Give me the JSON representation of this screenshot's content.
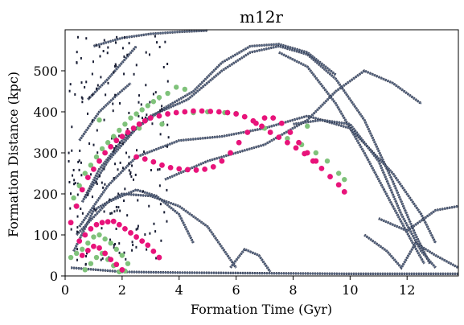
{
  "chart_data": {
    "type": "scatter",
    "title": "m12r",
    "xlabel": "Formation Time (Gyr)",
    "ylabel": "Formation Distance (kpc)",
    "xlim": [
      0,
      13.8
    ],
    "ylim": [
      0,
      600
    ],
    "xticks": [
      "0",
      "2",
      "4",
      "6",
      "8",
      "10",
      "12"
    ],
    "yticks": [
      "0",
      "100",
      "200",
      "300",
      "400",
      "500"
    ],
    "colors": {
      "background_density": "#5a6a85",
      "background_dark": "#1a1f35",
      "green": "#7fc27a",
      "pink": "#e8137a"
    },
    "density_tracks": [
      {
        "name": "",
        "points": [
          [
            0.6,
            180
          ],
          [
            1.2,
            260
          ],
          [
            2,
            330
          ],
          [
            3,
            390
          ],
          [
            4.3,
            430
          ],
          [
            5.5,
            500
          ],
          [
            6.5,
            545
          ],
          [
            7.5,
            560
          ],
          [
            8.5,
            540
          ],
          [
            9.5,
            480
          ],
          [
            10.5,
            380
          ],
          [
            11.5,
            230
          ],
          [
            12.3,
            100
          ],
          [
            12.8,
            30
          ]
        ]
      },
      {
        "name": "",
        "points": [
          [
            0.7,
            190
          ],
          [
            1.5,
            280
          ],
          [
            2.5,
            360
          ],
          [
            3.5,
            410
          ],
          [
            4.5,
            450
          ],
          [
            5.5,
            520
          ],
          [
            6.5,
            560
          ],
          [
            7.5,
            565
          ],
          [
            8.5,
            545
          ],
          [
            9.5,
            490
          ]
        ]
      },
      {
        "name": "",
        "points": [
          [
            7.5,
            545
          ],
          [
            8.5,
            510
          ],
          [
            9.5,
            420
          ],
          [
            10.5,
            300
          ],
          [
            11.5,
            170
          ],
          [
            12.2,
            80
          ],
          [
            12.6,
            30
          ]
        ]
      },
      {
        "name": "",
        "points": [
          [
            0.5,
            120
          ],
          [
            1.5,
            220
          ],
          [
            2.5,
            290
          ],
          [
            4,
            330
          ],
          [
            5.5,
            340
          ],
          [
            7,
            360
          ],
          [
            8.5,
            390
          ],
          [
            10,
            360
          ],
          [
            11.5,
            250
          ],
          [
            12.5,
            150
          ],
          [
            13,
            80
          ]
        ]
      },
      {
        "name": "",
        "points": [
          [
            0.3,
            60
          ],
          [
            1,
            160
          ],
          [
            2,
            200
          ],
          [
            3,
            195
          ],
          [
            4,
            170
          ],
          [
            5,
            120
          ],
          [
            5.8,
            40
          ],
          [
            6,
            20
          ]
        ]
      },
      {
        "name": "",
        "points": [
          [
            0.4,
            100
          ],
          [
            1.5,
            180
          ],
          [
            2.5,
            210
          ],
          [
            3.2,
            195
          ],
          [
            4,
            150
          ],
          [
            4.5,
            80
          ]
        ]
      },
      {
        "name": "",
        "points": [
          [
            5.8,
            20
          ],
          [
            6.3,
            65
          ],
          [
            6.8,
            50
          ],
          [
            7.2,
            10
          ]
        ]
      },
      {
        "name": "",
        "points": [
          [
            3.5,
            235
          ],
          [
            5,
            280
          ],
          [
            7,
            320
          ],
          [
            8.5,
            380
          ],
          [
            9.5,
            450
          ],
          [
            10.5,
            500
          ],
          [
            11.5,
            470
          ],
          [
            12.5,
            420
          ]
        ]
      },
      {
        "name": "",
        "points": [
          [
            8,
            370
          ],
          [
            9,
            380
          ],
          [
            10,
            370
          ],
          [
            11,
            280
          ],
          [
            11.8,
            150
          ],
          [
            12.5,
            60
          ],
          [
            13,
            20
          ]
        ]
      },
      {
        "name": "",
        "points": [
          [
            11,
            140
          ],
          [
            12,
            110
          ],
          [
            13,
            160
          ],
          [
            13.8,
            170
          ]
        ]
      },
      {
        "name": "",
        "points": [
          [
            10.5,
            100
          ],
          [
            11.3,
            60
          ],
          [
            11.8,
            20
          ],
          [
            12.3,
            80
          ],
          [
            13,
            50
          ],
          [
            13.8,
            20
          ]
        ]
      },
      {
        "name": "",
        "points": [
          [
            0.2,
            20
          ],
          [
            2,
            10
          ],
          [
            4,
            8
          ],
          [
            6,
            7
          ],
          [
            8,
            6
          ],
          [
            10,
            5
          ],
          [
            12,
            5
          ],
          [
            13.8,
            5
          ]
        ]
      },
      {
        "name": "",
        "points": [
          [
            1,
            560
          ],
          [
            2,
            580
          ],
          [
            3,
            590
          ],
          [
            4,
            595
          ],
          [
            5,
            598
          ]
        ]
      },
      {
        "name": "",
        "points": [
          [
            0.8,
            430
          ],
          [
            1.5,
            480
          ],
          [
            2,
            520
          ],
          [
            2.5,
            560
          ]
        ]
      },
      {
        "name": "",
        "points": [
          [
            0.5,
            330
          ],
          [
            1.2,
            400
          ],
          [
            1.8,
            440
          ],
          [
            2.3,
            470
          ]
        ]
      }
    ],
    "green_points": [
      {
        "x": 0.3,
        "y": 190
      },
      {
        "x": 0.5,
        "y": 220
      },
      {
        "x": 0.7,
        "y": 250
      },
      {
        "x": 0.9,
        "y": 270
      },
      {
        "x": 1.1,
        "y": 290
      },
      {
        "x": 1.3,
        "y": 310
      },
      {
        "x": 1.5,
        "y": 325
      },
      {
        "x": 1.7,
        "y": 340
      },
      {
        "x": 1.9,
        "y": 355
      },
      {
        "x": 2.1,
        "y": 370
      },
      {
        "x": 2.3,
        "y": 385
      },
      {
        "x": 2.5,
        "y": 395
      },
      {
        "x": 2.7,
        "y": 405
      },
      {
        "x": 2.9,
        "y": 415
      },
      {
        "x": 3.1,
        "y": 425
      },
      {
        "x": 3.3,
        "y": 435
      },
      {
        "x": 3.6,
        "y": 445
      },
      {
        "x": 3.9,
        "y": 460
      },
      {
        "x": 4.2,
        "y": 455
      },
      {
        "x": 1.2,
        "y": 380
      },
      {
        "x": 2.6,
        "y": 360
      },
      {
        "x": 3.4,
        "y": 370
      },
      {
        "x": 4.5,
        "y": 398
      },
      {
        "x": 5.0,
        "y": 400
      },
      {
        "x": 5.6,
        "y": 398
      },
      {
        "x": 6.0,
        "y": 396
      },
      {
        "x": 7.8,
        "y": 335
      },
      {
        "x": 8.3,
        "y": 320
      },
      {
        "x": 8.8,
        "y": 300
      },
      {
        "x": 9.2,
        "y": 280
      },
      {
        "x": 9.6,
        "y": 250
      },
      {
        "x": 9.8,
        "y": 235
      },
      {
        "x": 8.5,
        "y": 365
      },
      {
        "x": 7.0,
        "y": 360
      },
      {
        "x": 0.2,
        "y": 45
      },
      {
        "x": 0.4,
        "y": 55
      },
      {
        "x": 0.6,
        "y": 65
      },
      {
        "x": 0.8,
        "y": 80
      },
      {
        "x": 1.0,
        "y": 95
      },
      {
        "x": 1.2,
        "y": 100
      },
      {
        "x": 1.4,
        "y": 90
      },
      {
        "x": 1.6,
        "y": 80
      },
      {
        "x": 1.8,
        "y": 65
      },
      {
        "x": 2.0,
        "y": 50
      },
      {
        "x": 2.2,
        "y": 30
      },
      {
        "x": 0.9,
        "y": 30
      },
      {
        "x": 1.1,
        "y": 45
      },
      {
        "x": 1.3,
        "y": 55
      },
      {
        "x": 1.5,
        "y": 40
      },
      {
        "x": 1.7,
        "y": 25
      },
      {
        "x": 0.7,
        "y": 15
      },
      {
        "x": 1.9,
        "y": 10
      },
      {
        "x": 2.1,
        "y": 12
      }
    ],
    "pink_points": [
      {
        "x": 0.2,
        "y": 130
      },
      {
        "x": 0.4,
        "y": 170
      },
      {
        "x": 0.6,
        "y": 210
      },
      {
        "x": 0.8,
        "y": 240
      },
      {
        "x": 1.0,
        "y": 260
      },
      {
        "x": 1.2,
        "y": 280
      },
      {
        "x": 1.4,
        "y": 300
      },
      {
        "x": 1.6,
        "y": 315
      },
      {
        "x": 1.8,
        "y": 330
      },
      {
        "x": 2.0,
        "y": 340
      },
      {
        "x": 2.2,
        "y": 350
      },
      {
        "x": 2.4,
        "y": 360
      },
      {
        "x": 2.6,
        "y": 370
      },
      {
        "x": 2.8,
        "y": 378
      },
      {
        "x": 3.0,
        "y": 385
      },
      {
        "x": 3.3,
        "y": 390
      },
      {
        "x": 3.6,
        "y": 395
      },
      {
        "x": 3.9,
        "y": 398
      },
      {
        "x": 4.2,
        "y": 400
      },
      {
        "x": 4.5,
        "y": 402
      },
      {
        "x": 4.8,
        "y": 402
      },
      {
        "x": 5.1,
        "y": 401
      },
      {
        "x": 5.4,
        "y": 400
      },
      {
        "x": 5.7,
        "y": 398
      },
      {
        "x": 6.0,
        "y": 395
      },
      {
        "x": 6.3,
        "y": 388
      },
      {
        "x": 6.6,
        "y": 378
      },
      {
        "x": 6.9,
        "y": 365
      },
      {
        "x": 7.2,
        "y": 350
      },
      {
        "x": 7.5,
        "y": 338
      },
      {
        "x": 7.8,
        "y": 325
      },
      {
        "x": 8.1,
        "y": 312
      },
      {
        "x": 8.4,
        "y": 298
      },
      {
        "x": 8.7,
        "y": 280
      },
      {
        "x": 9.0,
        "y": 262
      },
      {
        "x": 9.3,
        "y": 242
      },
      {
        "x": 9.6,
        "y": 222
      },
      {
        "x": 9.8,
        "y": 205
      },
      {
        "x": 2.5,
        "y": 290
      },
      {
        "x": 2.8,
        "y": 285
      },
      {
        "x": 3.1,
        "y": 278
      },
      {
        "x": 3.4,
        "y": 270
      },
      {
        "x": 3.7,
        "y": 264
      },
      {
        "x": 4.0,
        "y": 261
      },
      {
        "x": 4.3,
        "y": 259
      },
      {
        "x": 4.6,
        "y": 258
      },
      {
        "x": 4.9,
        "y": 260
      },
      {
        "x": 5.2,
        "y": 266
      },
      {
        "x": 5.5,
        "y": 280
      },
      {
        "x": 5.8,
        "y": 300
      },
      {
        "x": 6.1,
        "y": 325
      },
      {
        "x": 6.4,
        "y": 350
      },
      {
        "x": 6.7,
        "y": 372
      },
      {
        "x": 7.0,
        "y": 385
      },
      {
        "x": 7.3,
        "y": 385
      },
      {
        "x": 7.6,
        "y": 372
      },
      {
        "x": 7.9,
        "y": 350
      },
      {
        "x": 8.2,
        "y": 325
      },
      {
        "x": 8.5,
        "y": 300
      },
      {
        "x": 8.8,
        "y": 280
      },
      {
        "x": 0.5,
        "y": 85
      },
      {
        "x": 0.7,
        "y": 100
      },
      {
        "x": 0.9,
        "y": 115
      },
      {
        "x": 1.1,
        "y": 125
      },
      {
        "x": 1.3,
        "y": 130
      },
      {
        "x": 1.5,
        "y": 132
      },
      {
        "x": 1.7,
        "y": 133
      },
      {
        "x": 1.9,
        "y": 125
      },
      {
        "x": 2.1,
        "y": 115
      },
      {
        "x": 2.3,
        "y": 105
      },
      {
        "x": 2.5,
        "y": 95
      },
      {
        "x": 2.7,
        "y": 85
      },
      {
        "x": 2.9,
        "y": 75
      },
      {
        "x": 3.1,
        "y": 60
      },
      {
        "x": 3.3,
        "y": 45
      },
      {
        "x": 0.6,
        "y": 50
      },
      {
        "x": 0.8,
        "y": 62
      },
      {
        "x": 1.0,
        "y": 72
      },
      {
        "x": 1.2,
        "y": 68
      },
      {
        "x": 1.4,
        "y": 55
      },
      {
        "x": 1.6,
        "y": 40
      },
      {
        "x": 1.8,
        "y": 28
      },
      {
        "x": 2.0,
        "y": 15
      }
    ]
  }
}
